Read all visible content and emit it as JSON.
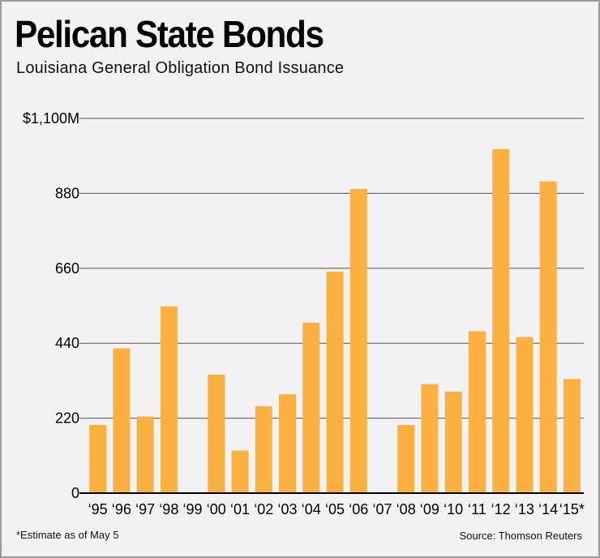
{
  "title": "Pelican State Bonds",
  "subtitle": "Louisiana General Obligation Bond Issuance",
  "footnote": "*Estimate as of May 5",
  "source": "Source: Thomson Reuters",
  "colors": {
    "bar": "#fbb040",
    "gridline": "#555555",
    "axis": "#000000",
    "background": "#f2f2f4"
  },
  "chart_data": {
    "type": "bar",
    "title": "Pelican State Bonds",
    "subtitle": "Louisiana General Obligation Bond Issuance",
    "xlabel": "",
    "ylabel": "",
    "ylim": [
      0,
      1100
    ],
    "yticks": [
      0,
      220,
      440,
      660,
      880,
      1100
    ],
    "ytick_labels": [
      "0",
      "220",
      "440",
      "660",
      "880",
      "$1,100M"
    ],
    "grid": true,
    "categories": [
      "‘95",
      "‘96",
      "‘97",
      "‘98",
      "‘99",
      "‘00",
      "‘01",
      "‘02",
      "‘03",
      "‘04",
      "‘05",
      "‘06",
      "‘07",
      "‘08",
      "‘09",
      "‘10",
      "‘11",
      "‘12",
      "‘13",
      "‘14",
      "‘15*"
    ],
    "values": [
      200,
      425,
      225,
      548,
      0,
      348,
      125,
      255,
      290,
      500,
      650,
      893,
      0,
      200,
      320,
      298,
      475,
      1010,
      458,
      915,
      335
    ]
  }
}
